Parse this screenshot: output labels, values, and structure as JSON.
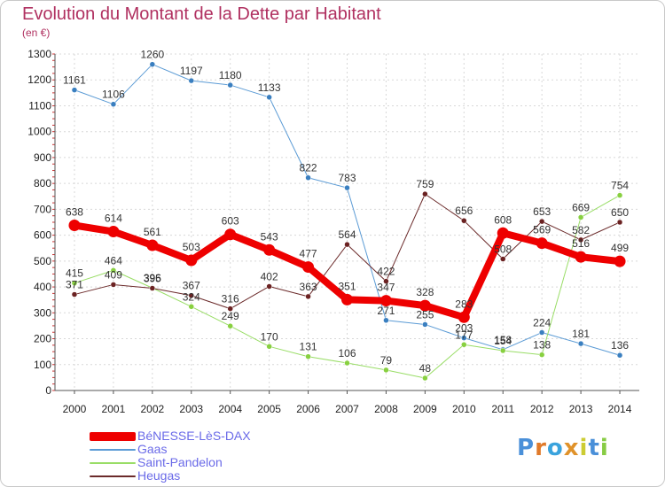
{
  "title": "Evolution du Montant de la Dette par Habitant",
  "subtitle": "(en €)",
  "logo": "Proxiti",
  "chart_data": {
    "type": "line",
    "x": [
      "2000",
      "2001",
      "2002",
      "2003",
      "2004",
      "2005",
      "2006",
      "2007",
      "2008",
      "2009",
      "2010",
      "2011",
      "2012",
      "2013",
      "2014"
    ],
    "ylim": [
      0,
      1300
    ],
    "yticks": [
      0,
      100,
      200,
      300,
      400,
      500,
      600,
      700,
      800,
      900,
      1000,
      1100,
      1200,
      1300
    ],
    "grid": true,
    "legend_position": "bottom-left",
    "series": [
      {
        "name": "BéNESSE-LèS-DAX",
        "color": "#ee0000",
        "width": 8,
        "marker_color": "#ee0000",
        "values": [
          638,
          614,
          561,
          503,
          603,
          543,
          477,
          351,
          347,
          328,
          283,
          608,
          569,
          516,
          499
        ]
      },
      {
        "name": "Gaas",
        "color": "#5b9bd5",
        "width": 1,
        "marker_color": "#3a7fc0",
        "values": [
          1161,
          1106,
          1260,
          1197,
          1180,
          1133,
          822,
          783,
          271,
          255,
          203,
          158,
          224,
          181,
          136
        ]
      },
      {
        "name": "Saint-Pandelon",
        "color": "#99dd66",
        "width": 1,
        "marker_color": "#88d040",
        "values": [
          415,
          464,
          396,
          324,
          249,
          170,
          131,
          106,
          79,
          48,
          177,
          154,
          138,
          669,
          754
        ]
      },
      {
        "name": "Heugas",
        "color": "#6b2a2a",
        "width": 1,
        "marker_color": "#6b2222",
        "values": [
          371,
          409,
          395,
          367,
          316,
          402,
          363,
          564,
          422,
          759,
          656,
          508,
          653,
          582,
          650
        ]
      }
    ]
  }
}
